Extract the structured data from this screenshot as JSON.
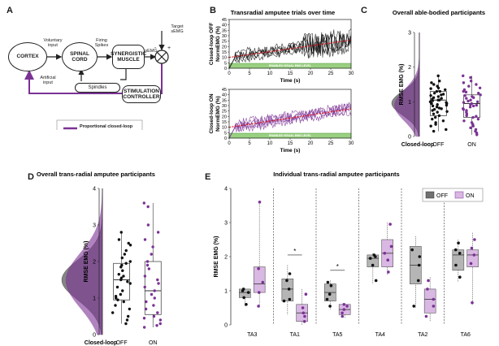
{
  "colors": {
    "purple": "#7b3294",
    "purple_light": "#d9b8e3",
    "gray": "#707070",
    "gray_light": "#b5b5b5",
    "black": "#111111",
    "red": "#e0141e",
    "green": "#9ad081",
    "green_dark": "#4c9a3a"
  },
  "panel_a": {
    "letter": "A",
    "cortex": "CORTEX",
    "spinal": "SPINAL CORD",
    "synergistic": "SYNERGISTIC MUSCLE",
    "spindles": "Spindles",
    "stimulation": "STIMULATION CONTROLLER",
    "voluntary": "Voluntary input",
    "artificial": "Artificial input",
    "firing": "Firing Spikes",
    "semg": "sEMG",
    "target": "Target sEMG",
    "plus_sign": "+",
    "minus_sign": "-",
    "legend": "Proportional closed-loop"
  },
  "chart_data": [
    {
      "id": "B",
      "type": "line",
      "title": "Transradial amputee trials over time",
      "subplots": [
        {
          "ylabel_line1": "Closed-loop OFF",
          "ylabel_line2": "NormEMG (%)",
          "ylim": [
            0,
            45
          ],
          "yticks": [
            0,
            5,
            10,
            15,
            20,
            25,
            30,
            35,
            40,
            45
          ],
          "band_label": "ENABLED VISUAL EMG LEVEL",
          "color": "#111111",
          "trend": [
            [
              0,
              10
            ],
            [
              30,
              26
            ]
          ]
        },
        {
          "ylabel_line1": "Closed-loop ON",
          "ylabel_line2": "NormEMG (%)",
          "ylim": [
            0,
            45
          ],
          "yticks": [
            0,
            5,
            10,
            15,
            20,
            25,
            30,
            35,
            40,
            45
          ],
          "band_label": "ENABLED VISUAL EMG LEVEL",
          "color": "#7b3294",
          "trend": [
            [
              0,
              10
            ],
            [
              30,
              27
            ]
          ]
        }
      ],
      "xlim": [
        0,
        30
      ],
      "xticks": [
        0,
        5,
        10,
        15,
        20,
        25,
        30
      ],
      "xlabel_top": "Time (s)",
      "xlabel_bottom": "Time (s)"
    },
    {
      "id": "C",
      "type": "scatter",
      "title": "Overall able-bodied participants",
      "ylabel": "RMSE EMG (%)",
      "ylim": [
        0,
        3
      ],
      "yticks": [
        0,
        1,
        2,
        3
      ],
      "categories": [
        "OFF",
        "ON"
      ],
      "density_label": "Closed-loop",
      "series": [
        {
          "name": "OFF",
          "box": {
            "q1": 0.6,
            "median": 1.05,
            "q3": 1.3,
            "min": 0.15,
            "max": 1.75
          },
          "points": [
            1.75,
            1.6,
            1.55,
            1.5,
            1.45,
            1.4,
            1.38,
            1.35,
            1.3,
            1.3,
            1.25,
            1.22,
            1.2,
            1.18,
            1.15,
            1.12,
            1.1,
            1.08,
            1.05,
            1.05,
            1.03,
            1.0,
            0.98,
            0.95,
            0.95,
            0.92,
            0.9,
            0.88,
            0.85,
            0.82,
            0.8,
            0.78,
            0.75,
            0.72,
            0.7,
            0.65,
            0.6,
            0.55,
            0.5,
            0.45,
            0.4,
            0.35,
            0.3,
            0.2,
            0.15
          ]
        },
        {
          "name": "ON",
          "box": {
            "q1": 0.55,
            "median": 0.95,
            "q3": 1.2,
            "min": 0.05,
            "max": 1.75
          },
          "points": [
            1.75,
            1.7,
            1.6,
            1.55,
            1.5,
            1.45,
            1.4,
            1.35,
            1.3,
            1.28,
            1.25,
            1.2,
            1.18,
            1.15,
            1.12,
            1.1,
            1.05,
            1.02,
            1.0,
            0.98,
            0.95,
            0.92,
            0.9,
            0.88,
            0.85,
            0.8,
            0.78,
            0.75,
            0.7,
            0.65,
            0.6,
            0.58,
            0.55,
            0.5,
            0.45,
            0.4,
            0.35,
            0.3,
            0.25,
            0.2,
            0.15,
            0.1,
            0.05
          ]
        }
      ]
    },
    {
      "id": "D",
      "type": "scatter",
      "title": "Overall trans-radial amputee participants",
      "ylabel": "RMSE EMG (%)",
      "ylim": [
        0,
        4
      ],
      "yticks": [
        0,
        1,
        2,
        3,
        4
      ],
      "categories": [
        "OFF",
        "ON"
      ],
      "density_label": "Closed-loop",
      "series": [
        {
          "name": "OFF",
          "box": {
            "q1": 0.95,
            "median": 1.5,
            "q3": 1.95,
            "min": 0.3,
            "max": 2.8
          },
          "points": [
            2.8,
            2.6,
            2.5,
            2.45,
            2.3,
            2.2,
            2.1,
            2.0,
            1.95,
            1.9,
            1.85,
            1.75,
            1.65,
            1.6,
            1.55,
            1.5,
            1.45,
            1.4,
            1.3,
            1.2,
            1.1,
            1.05,
            1.0,
            0.95,
            0.9,
            0.8,
            0.7,
            0.6,
            0.5,
            0.4,
            0.3
          ]
        },
        {
          "name": "ON",
          "box": {
            "q1": 0.55,
            "median": 1.2,
            "q3": 2.0,
            "min": 0.2,
            "max": 3.6
          },
          "points": [
            3.6,
            3.5,
            3.0,
            2.8,
            2.6,
            2.4,
            2.2,
            2.0,
            1.9,
            1.8,
            1.6,
            1.5,
            1.4,
            1.3,
            1.2,
            1.1,
            1.0,
            0.9,
            0.8,
            0.7,
            0.6,
            0.5,
            0.45,
            0.4,
            0.3,
            0.25,
            0.2
          ]
        }
      ]
    },
    {
      "id": "E",
      "type": "scatter",
      "title": "Individual trans-radial amputee participants",
      "ylabel": "RMSE EMG (%)",
      "ylim": [
        0,
        4
      ],
      "yticks": [
        0,
        1,
        2,
        3,
        4
      ],
      "legend": [
        "OFF",
        "ON"
      ],
      "categories": [
        "TA3",
        "TA1",
        "TA5",
        "TA4",
        "TA2",
        "TA6"
      ],
      "groups": [
        {
          "name": "TA3",
          "sig": "",
          "off": {
            "box": {
              "q1": 0.8,
              "median": 0.95,
              "q3": 1.05,
              "min": 0.55,
              "max": 1.05
            },
            "points": [
              1.05,
              1.0,
              0.95,
              0.8,
              0.6
            ]
          },
          "on": {
            "box": {
              "q1": 0.95,
              "median": 1.2,
              "q3": 1.7,
              "min": 0.5,
              "max": 3.6
            },
            "points": [
              3.6,
              1.65,
              1.25,
              0.95,
              0.55
            ]
          }
        },
        {
          "name": "TA1",
          "sig": "*",
          "off": {
            "box": {
              "q1": 0.7,
              "median": 1.05,
              "q3": 1.35,
              "min": 0.3,
              "max": 1.75
            },
            "points": [
              1.5,
              1.3,
              1.05,
              0.75,
              0.7
            ]
          },
          "on": {
            "box": {
              "q1": 0.1,
              "median": 0.35,
              "q3": 0.6,
              "min": 0.0,
              "max": 1.05
            },
            "points": [
              0.9,
              0.5,
              0.35,
              0.25,
              0.1
            ]
          }
        },
        {
          "name": "TA5",
          "sig": "*",
          "off": {
            "box": {
              "q1": 0.7,
              "median": 0.95,
              "q3": 1.2,
              "min": 0.45,
              "max": 1.3
            },
            "points": [
              1.25,
              1.15,
              0.9,
              0.75,
              0.55
            ]
          },
          "on": {
            "box": {
              "q1": 0.3,
              "median": 0.45,
              "q3": 0.6,
              "min": 0.2,
              "max": 0.6
            },
            "points": [
              0.6,
              0.55,
              0.45,
              0.35,
              0.25
            ]
          }
        },
        {
          "name": "TA4",
          "sig": "",
          "off": {
            "box": {
              "q1": 1.7,
              "median": 1.95,
              "q3": 2.05,
              "min": 1.2,
              "max": 2.1
            },
            "points": [
              2.05,
              2.0,
              1.95,
              1.75,
              1.3
            ]
          },
          "on": {
            "box": {
              "q1": 1.7,
              "median": 2.1,
              "q3": 2.5,
              "min": 1.45,
              "max": 3.0
            },
            "points": [
              2.95,
              2.3,
              2.1,
              1.9,
              1.55
            ]
          }
        },
        {
          "name": "TA2",
          "sig": "",
          "off": {
            "box": {
              "q1": 1.2,
              "median": 1.75,
              "q3": 2.3,
              "min": 0.5,
              "max": 2.6
            },
            "points": [
              2.2,
              2.0,
              1.75,
              1.3,
              0.55
            ]
          },
          "on": {
            "box": {
              "q1": 0.35,
              "median": 0.75,
              "q3": 1.05,
              "min": 0.1,
              "max": 1.4
            },
            "points": [
              1.3,
              1.05,
              0.75,
              0.55,
              0.25
            ]
          }
        },
        {
          "name": "TA6",
          "sig": "",
          "off": {
            "box": {
              "q1": 1.6,
              "median": 2.05,
              "q3": 2.2,
              "min": 1.25,
              "max": 2.5
            },
            "points": [
              2.4,
              2.2,
              2.1,
              1.75,
              1.4
            ]
          },
          "on": {
            "box": {
              "q1": 1.7,
              "median": 2.05,
              "q3": 2.2,
              "min": 0.6,
              "max": 2.7
            },
            "points": [
              2.5,
              2.25,
              2.05,
              1.8,
              0.65
            ]
          }
        }
      ]
    }
  ],
  "panel_letters": {
    "b": "B",
    "c": "C",
    "d": "D",
    "e": "E"
  }
}
